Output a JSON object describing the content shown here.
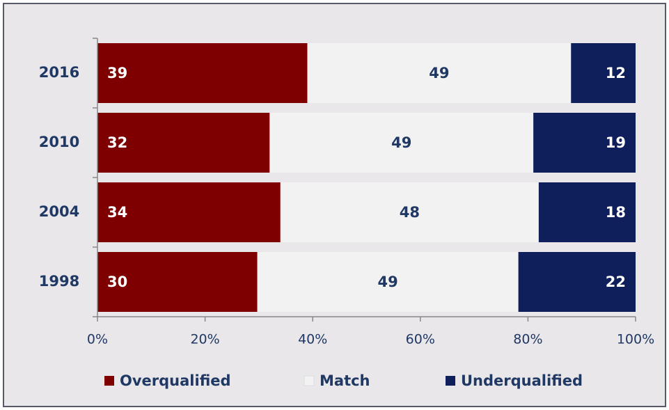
{
  "chart_data": {
    "type": "stacked-barh",
    "stack": "percent",
    "categories": [
      "2016",
      "2010",
      "2004",
      "1998"
    ],
    "series": [
      {
        "name": "Overqualified",
        "color": "#7f0000",
        "label_color": "#ffffff",
        "values": [
          39,
          32,
          34,
          30
        ]
      },
      {
        "name": "Match",
        "color": "#f2f2f2",
        "label_color": "#1f3864",
        "values": [
          49,
          49,
          48,
          49
        ]
      },
      {
        "name": "Underqualified",
        "color": "#0e1f5b",
        "label_color": "#ffffff",
        "values": [
          12,
          19,
          18,
          22
        ]
      }
    ],
    "xlim": [
      0,
      100
    ],
    "xticks": [
      {
        "value": 0,
        "label": "0%"
      },
      {
        "value": 20,
        "label": "20%"
      },
      {
        "value": 40,
        "label": "40%"
      },
      {
        "value": 60,
        "label": "60%"
      },
      {
        "value": 80,
        "label": "80%"
      },
      {
        "value": 100,
        "label": "100%"
      }
    ],
    "legend": "bottom"
  }
}
